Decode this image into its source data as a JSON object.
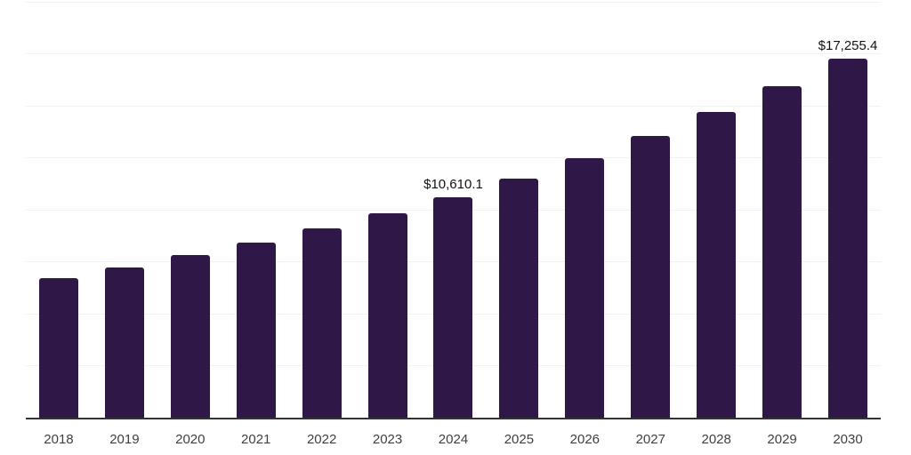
{
  "chart_data": {
    "type": "bar",
    "title": "",
    "xlabel": "",
    "ylabel": "",
    "categories": [
      "2018",
      "2019",
      "2020",
      "2021",
      "2022",
      "2023",
      "2024",
      "2025",
      "2026",
      "2027",
      "2028",
      "2029",
      "2030"
    ],
    "values": [
      6730,
      7240,
      7840,
      8430,
      9120,
      9830,
      10610.1,
      11500,
      12490,
      13530,
      14700,
      15940,
      17255.4
    ],
    "value_labels": [
      {
        "category": "2024",
        "text": "$10,610.1"
      },
      {
        "category": "2030",
        "text": "$17,255.4"
      }
    ],
    "ylim": [
      0,
      20000
    ],
    "ygrid_step": 2500,
    "y_axis_ticks_visible": false,
    "legend": "none",
    "grid": "horizontal",
    "colors": {
      "bar": "#2F1747",
      "gridline": "#F2F2F2",
      "axis_line": "#333333",
      "tick_label": "#3F3F3F",
      "value_label": "#111111"
    }
  }
}
